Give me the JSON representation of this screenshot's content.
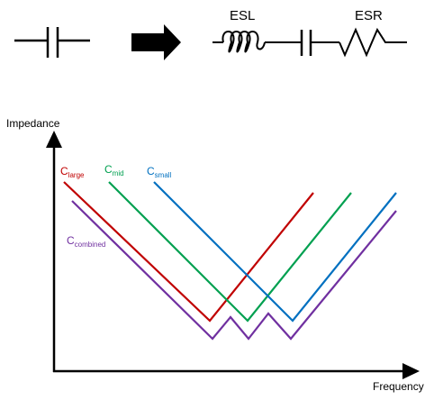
{
  "labels": {
    "esl": "ESL",
    "esr": "ESR",
    "y_axis": "Impedance",
    "x_axis": "Frequency"
  },
  "curves": {
    "large": {
      "base": "C",
      "sub": "large",
      "color": "#c00000"
    },
    "mid": {
      "base": "C",
      "sub": "mid",
      "color": "#00a050"
    },
    "small": {
      "base": "C",
      "sub": "small",
      "color": "#0070c0"
    },
    "combined": {
      "base": "C",
      "sub": "combined",
      "color": "#7030a0"
    }
  },
  "colors": {
    "ink": "#000000"
  }
}
